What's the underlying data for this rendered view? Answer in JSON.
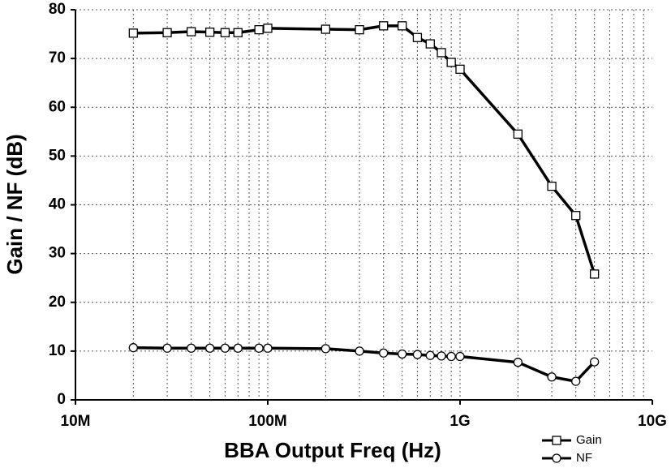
{
  "chart_data": {
    "type": "line",
    "x_label": "BBA Output Freq (Hz)",
    "y_label": "Gain / NF (dB)",
    "x": [
      20000000,
      30000000,
      40000000,
      50000000,
      60000000,
      70000000,
      90000000,
      100000000,
      200000000,
      300000000,
      400000000,
      500000000,
      600000000,
      700000000,
      800000000,
      900000000,
      1000000000,
      2000000000,
      3000000000,
      4000000000,
      5000000000
    ],
    "series": [
      {
        "name": "Gain",
        "color": "#000000",
        "marker": "square",
        "values": [
          75.2,
          75.3,
          75.5,
          75.4,
          75.3,
          75.3,
          75.9,
          76.2,
          76.0,
          75.9,
          76.7,
          76.7,
          74.3,
          73.0,
          71.2,
          69.2,
          67.8,
          54.5,
          43.8,
          37.8,
          25.8
        ]
      },
      {
        "name": "NF",
        "color": "#000000",
        "marker": "circle",
        "values": [
          10.7,
          10.6,
          10.6,
          10.6,
          10.6,
          10.6,
          10.6,
          10.6,
          10.5,
          10.0,
          9.6,
          9.4,
          9.3,
          9.1,
          9.0,
          8.9,
          8.9,
          7.7,
          4.7,
          3.8,
          7.8
        ]
      }
    ],
    "xscale": "log",
    "xlim": [
      10000000,
      10000000000
    ],
    "xticks": [
      {
        "value": 10000000,
        "label": "10M"
      },
      {
        "value": 100000000,
        "label": "100M"
      },
      {
        "value": 1000000000,
        "label": "1G"
      },
      {
        "value": 10000000000,
        "label": "10G"
      }
    ],
    "ylim": [
      0,
      80
    ],
    "yticks": [
      0,
      10,
      20,
      30,
      40,
      50,
      60,
      70,
      80
    ],
    "grid": true,
    "legend": "below-right"
  }
}
